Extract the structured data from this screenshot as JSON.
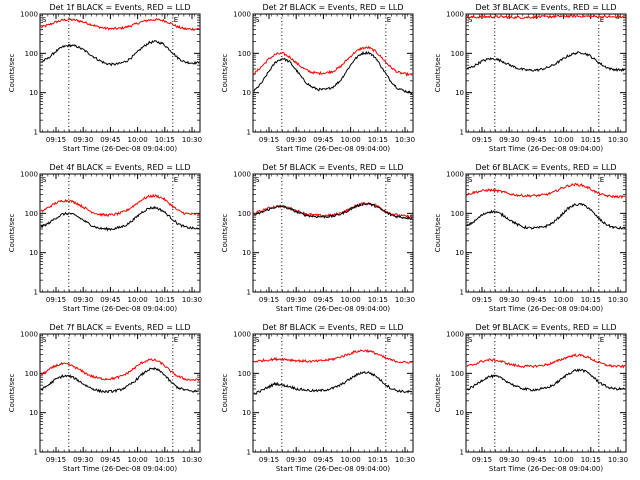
{
  "chart_data": [
    {
      "type": "line",
      "title": "Det 1f BLACK = Events, RED = LLD",
      "xlabel": "Start Time (26-Dec-08 09:04:00)",
      "ylabel": "Counts/sec",
      "yscale": "log",
      "ylim": [
        1,
        1000
      ],
      "yticks": [
        1,
        10,
        100,
        1000
      ],
      "yticklabels": [
        "1",
        "10",
        "100",
        "1000"
      ],
      "xticklabels": [
        "09:15",
        "09:30",
        "09:45",
        "10:00",
        "10:15",
        "10:30"
      ],
      "markers": [
        "S",
        "E"
      ],
      "series": [
        {
          "color": "#ff0000",
          "values": [
            460,
            520,
            620,
            700,
            720,
            690,
            620,
            540,
            470,
            430,
            420,
            430,
            470,
            540,
            630,
            700,
            720,
            690,
            590,
            470,
            420,
            410,
            420
          ]
        },
        {
          "color": "#000000",
          "values": [
            60,
            75,
            110,
            145,
            160,
            150,
            120,
            90,
            68,
            55,
            52,
            55,
            65,
            90,
            135,
            185,
            200,
            175,
            120,
            78,
            60,
            57,
            58
          ]
        }
      ]
    },
    {
      "type": "line",
      "title": "Det 2f BLACK = Events, RED = LLD",
      "xlabel": "Start Time (26-Dec-08 09:04:00)",
      "ylabel": "Counts/sec",
      "yscale": "log",
      "ylim": [
        1,
        1000
      ],
      "yticks": [
        1,
        10,
        100,
        1000
      ],
      "yticklabels": [
        "1",
        "10",
        "100",
        "1000"
      ],
      "xticklabels": [
        "09:15",
        "09:30",
        "09:45",
        "10:00",
        "10:15",
        "10:30"
      ],
      "markers": [
        "S",
        "E"
      ],
      "series": [
        {
          "color": "#ff0000",
          "values": [
            30,
            45,
            70,
            95,
            100,
            80,
            55,
            40,
            33,
            31,
            32,
            35,
            45,
            70,
            105,
            135,
            140,
            110,
            70,
            45,
            33,
            30,
            28
          ]
        },
        {
          "color": "#000000",
          "values": [
            11,
            17,
            33,
            60,
            75,
            60,
            35,
            20,
            14,
            12,
            12,
            14,
            20,
            38,
            70,
            100,
            105,
            75,
            38,
            20,
            13,
            11,
            10
          ]
        }
      ]
    },
    {
      "type": "line",
      "title": "Det 3f BLACK = Events, RED = LLD",
      "xlabel": "Start Time (26-Dec-08 09:04:00)",
      "ylabel": "Counts/sec",
      "yscale": "log",
      "ylim": [
        1,
        1000
      ],
      "yticks": [
        1,
        10,
        100,
        1000
      ],
      "yticklabels": [
        "1",
        "10",
        "100",
        "1000"
      ],
      "xticklabels": [
        "09:15",
        "09:30",
        "09:45",
        "10:00",
        "10:15",
        "10:30"
      ],
      "markers": [
        "S",
        "E"
      ],
      "series": [
        {
          "color": "#ff0000",
          "values": [
            820,
            830,
            840,
            850,
            850,
            840,
            830,
            820,
            820,
            830,
            840,
            850,
            860,
            870,
            880,
            880,
            880,
            870,
            860,
            850,
            840,
            830,
            830
          ]
        },
        {
          "color": "#000000",
          "values": [
            40,
            48,
            62,
            72,
            72,
            62,
            50,
            42,
            38,
            37,
            38,
            42,
            50,
            65,
            85,
            100,
            105,
            90,
            65,
            48,
            40,
            38,
            38
          ]
        }
      ]
    },
    {
      "type": "line",
      "title": "Det 4f BLACK = Events, RED = LLD",
      "xlabel": "Start Time (26-Dec-08 09:04:00)",
      "ylabel": "Counts/sec",
      "yscale": "log",
      "ylim": [
        1,
        1000
      ],
      "yticks": [
        1,
        10,
        100,
        1000
      ],
      "yticklabels": [
        "1",
        "10",
        "100",
        "1000"
      ],
      "xticklabels": [
        "09:15",
        "09:30",
        "09:45",
        "10:00",
        "10:15",
        "10:30"
      ],
      "markers": [
        "S",
        "E"
      ],
      "series": [
        {
          "color": "#ff0000",
          "values": [
            110,
            140,
            180,
            210,
            210,
            180,
            140,
            110,
            95,
            90,
            92,
            100,
            120,
            160,
            220,
            270,
            280,
            240,
            170,
            120,
            100,
            95,
            95
          ]
        },
        {
          "color": "#000000",
          "values": [
            45,
            55,
            75,
            95,
            100,
            85,
            65,
            50,
            42,
            40,
            40,
            44,
            52,
            72,
            105,
            135,
            140,
            115,
            80,
            55,
            45,
            42,
            40
          ]
        }
      ]
    },
    {
      "type": "line",
      "title": "Det 5f BLACK = Events, RED = LLD",
      "xlabel": "Start Time (26-Dec-08 09:04:00)",
      "ylabel": "Counts/sec",
      "yscale": "log",
      "ylim": [
        1,
        1000
      ],
      "yticks": [
        1,
        10,
        100,
        1000
      ],
      "yticklabels": [
        "1",
        "10",
        "100",
        "1000"
      ],
      "xticklabels": [
        "09:15",
        "09:30",
        "09:45",
        "10:00",
        "10:15",
        "10:30"
      ],
      "markers": [
        "S",
        "E"
      ],
      "series": [
        {
          "color": "#ff0000",
          "values": [
            100,
            115,
            135,
            150,
            150,
            135,
            115,
            100,
            92,
            88,
            88,
            90,
            100,
            120,
            150,
            175,
            180,
            160,
            125,
            100,
            90,
            85,
            82
          ]
        },
        {
          "color": "#000000",
          "values": [
            90,
            105,
            125,
            145,
            150,
            130,
            108,
            92,
            85,
            82,
            82,
            85,
            95,
            115,
            145,
            170,
            175,
            150,
            115,
            92,
            82,
            78,
            76
          ]
        }
      ]
    },
    {
      "type": "line",
      "title": "Det 6f BLACK = Events, RED = LLD",
      "xlabel": "Start Time (26-Dec-08 09:04:00)",
      "ylabel": "Counts/sec",
      "yscale": "log",
      "ylim": [
        1,
        1000
      ],
      "yticks": [
        1,
        10,
        100,
        1000
      ],
      "yticklabels": [
        "1",
        "10",
        "100",
        "1000"
      ],
      "xticklabels": [
        "09:15",
        "09:30",
        "09:45",
        "10:00",
        "10:15",
        "10:30"
      ],
      "markers": [
        "S",
        "E"
      ],
      "series": [
        {
          "color": "#ff0000",
          "values": [
            300,
            340,
            370,
            390,
            380,
            350,
            310,
            290,
            280,
            280,
            285,
            300,
            340,
            420,
            500,
            540,
            520,
            440,
            340,
            290,
            270,
            265,
            265
          ]
        },
        {
          "color": "#000000",
          "values": [
            48,
            62,
            88,
            110,
            110,
            90,
            68,
            52,
            44,
            42,
            43,
            47,
            58,
            85,
            130,
            165,
            170,
            135,
            85,
            58,
            46,
            42,
            42
          ]
        }
      ]
    },
    {
      "type": "line",
      "title": "Det 7f BLACK = Events, RED = LLD",
      "xlabel": "Start Time (26-Dec-08 09:04:00)",
      "ylabel": "Counts/sec",
      "yscale": "log",
      "ylim": [
        1,
        1000
      ],
      "yticks": [
        1,
        10,
        100,
        1000
      ],
      "yticklabels": [
        "1",
        "10",
        "100",
        "1000"
      ],
      "xticklabels": [
        "09:15",
        "09:30",
        "09:45",
        "10:00",
        "10:15",
        "10:30"
      ],
      "markers": [
        "S",
        "E"
      ],
      "series": [
        {
          "color": "#ff0000",
          "values": [
            90,
            120,
            155,
            175,
            165,
            135,
            105,
            85,
            75,
            72,
            74,
            82,
            100,
            135,
            185,
            220,
            215,
            170,
            115,
            85,
            72,
            68,
            68
          ]
        },
        {
          "color": "#000000",
          "values": [
            38,
            50,
            70,
            85,
            85,
            70,
            52,
            42,
            36,
            34,
            35,
            38,
            46,
            62,
            92,
            125,
            130,
            100,
            62,
            44,
            38,
            35,
            35
          ]
        }
      ]
    },
    {
      "type": "line",
      "title": "Det 8f BLACK = Events, RED = LLD",
      "xlabel": "Start Time (26-Dec-08 09:04:00)",
      "ylabel": "Counts/sec",
      "yscale": "log",
      "ylim": [
        1,
        1000
      ],
      "yticks": [
        1,
        10,
        100,
        1000
      ],
      "yticklabels": [
        "1",
        "10",
        "100",
        "1000"
      ],
      "xticklabels": [
        "09:15",
        "09:30",
        "09:45",
        "10:00",
        "10:15",
        "10:30"
      ],
      "markers": [
        "S",
        "E"
      ],
      "series": [
        {
          "color": "#ff0000",
          "values": [
            200,
            210,
            220,
            230,
            230,
            220,
            210,
            205,
            200,
            205,
            215,
            230,
            260,
            300,
            350,
            380,
            370,
            320,
            260,
            220,
            200,
            190,
            190
          ]
        },
        {
          "color": "#000000",
          "values": [
            30,
            36,
            45,
            55,
            50,
            46,
            40,
            38,
            36,
            36,
            38,
            42,
            50,
            65,
            85,
            105,
            105,
            85,
            58,
            42,
            36,
            34,
            34
          ]
        }
      ]
    },
    {
      "type": "line",
      "title": "Det 9f BLACK = Events, RED = LLD",
      "xlabel": "Start Time (26-Dec-08 09:04:00)",
      "ylabel": "Counts/sec",
      "yscale": "log",
      "ylim": [
        1,
        1000
      ],
      "yticks": [
        1,
        10,
        100,
        1000
      ],
      "yticklabels": [
        "1",
        "10",
        "100",
        "1000"
      ],
      "xticklabels": [
        "09:15",
        "09:30",
        "09:45",
        "10:00",
        "10:15",
        "10:30"
      ],
      "markers": [
        "S",
        "E"
      ],
      "series": [
        {
          "color": "#ff0000",
          "values": [
            150,
            170,
            200,
            220,
            215,
            195,
            170,
            155,
            150,
            150,
            155,
            165,
            185,
            220,
            260,
            290,
            285,
            250,
            200,
            170,
            155,
            150,
            150
          ]
        },
        {
          "color": "#000000",
          "values": [
            38,
            48,
            65,
            82,
            85,
            72,
            56,
            45,
            40,
            38,
            39,
            42,
            50,
            68,
            95,
            118,
            122,
            100,
            68,
            50,
            42,
            40,
            40
          ]
        }
      ]
    }
  ]
}
